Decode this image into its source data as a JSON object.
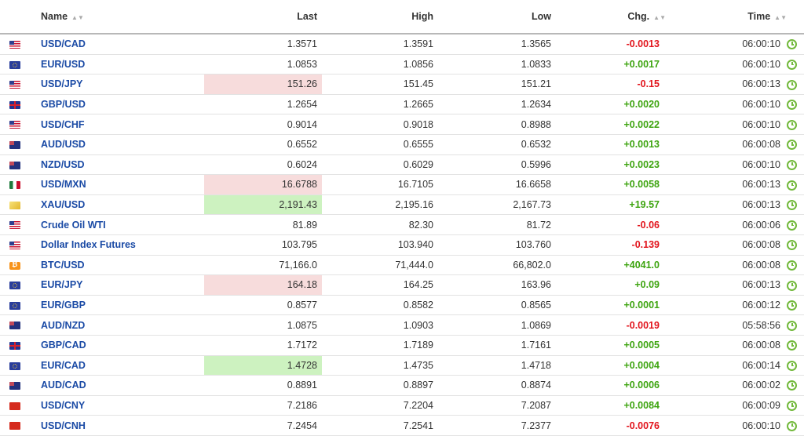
{
  "columns": {
    "name": "Name",
    "last": "Last",
    "high": "High",
    "low": "Low",
    "chg": "Chg.",
    "time": "Time"
  },
  "colors": {
    "positive": "#3da40f",
    "negative": "#e2141c",
    "link": "#1a4aa5",
    "highlight_down": "#f7dcdc",
    "highlight_up": "#cdf2c0"
  },
  "rows": [
    {
      "flag": "us-flag-icon",
      "name": "USD/CAD",
      "last": "1.3571",
      "high": "1.3591",
      "low": "1.3565",
      "chg": "-0.0013",
      "dir": "neg",
      "time": "06:00:10",
      "hl": ""
    },
    {
      "flag": "eu-flag-icon",
      "name": "EUR/USD",
      "last": "1.0853",
      "high": "1.0856",
      "low": "1.0833",
      "chg": "+0.0017",
      "dir": "pos",
      "time": "06:00:10",
      "hl": ""
    },
    {
      "flag": "us-flag-icon",
      "name": "USD/JPY",
      "last": "151.26",
      "high": "151.45",
      "low": "151.21",
      "chg": "-0.15",
      "dir": "neg",
      "time": "06:00:13",
      "hl": "down"
    },
    {
      "flag": "gb-flag-icon",
      "name": "GBP/USD",
      "last": "1.2654",
      "high": "1.2665",
      "low": "1.2634",
      "chg": "+0.0020",
      "dir": "pos",
      "time": "06:00:10",
      "hl": ""
    },
    {
      "flag": "us-flag-icon",
      "name": "USD/CHF",
      "last": "0.9014",
      "high": "0.9018",
      "low": "0.8988",
      "chg": "+0.0022",
      "dir": "pos",
      "time": "06:00:10",
      "hl": ""
    },
    {
      "flag": "au-flag-icon",
      "name": "AUD/USD",
      "last": "0.6552",
      "high": "0.6555",
      "low": "0.6532",
      "chg": "+0.0013",
      "dir": "pos",
      "time": "06:00:08",
      "hl": ""
    },
    {
      "flag": "nz-flag-icon",
      "name": "NZD/USD",
      "last": "0.6024",
      "high": "0.6029",
      "low": "0.5996",
      "chg": "+0.0023",
      "dir": "pos",
      "time": "06:00:10",
      "hl": ""
    },
    {
      "flag": "mx-flag-icon",
      "name": "USD/MXN",
      "last": "16.6788",
      "high": "16.7105",
      "low": "16.6658",
      "chg": "+0.0058",
      "dir": "pos",
      "time": "06:00:13",
      "hl": "down"
    },
    {
      "flag": "gold-icon",
      "name": "XAU/USD",
      "last": "2,191.43",
      "high": "2,195.16",
      "low": "2,167.73",
      "chg": "+19.57",
      "dir": "pos",
      "time": "06:00:13",
      "hl": "up"
    },
    {
      "flag": "us-flag-icon",
      "name": "Crude Oil WTI",
      "last": "81.89",
      "high": "82.30",
      "low": "81.72",
      "chg": "-0.06",
      "dir": "neg",
      "time": "06:00:06",
      "hl": ""
    },
    {
      "flag": "us-flag-icon",
      "name": "Dollar Index Futures",
      "last": "103.795",
      "high": "103.940",
      "low": "103.760",
      "chg": "-0.139",
      "dir": "neg",
      "time": "06:00:08",
      "hl": ""
    },
    {
      "flag": "bitcoin-icon",
      "name": "BTC/USD",
      "last": "71,166.0",
      "high": "71,444.0",
      "low": "66,802.0",
      "chg": "+4041.0",
      "dir": "pos",
      "time": "06:00:08",
      "hl": ""
    },
    {
      "flag": "eu-flag-icon",
      "name": "EUR/JPY",
      "last": "164.18",
      "high": "164.25",
      "low": "163.96",
      "chg": "+0.09",
      "dir": "pos",
      "time": "06:00:13",
      "hl": "down"
    },
    {
      "flag": "eu-flag-icon",
      "name": "EUR/GBP",
      "last": "0.8577",
      "high": "0.8582",
      "low": "0.8565",
      "chg": "+0.0001",
      "dir": "pos",
      "time": "06:00:12",
      "hl": ""
    },
    {
      "flag": "au-flag-icon",
      "name": "AUD/NZD",
      "last": "1.0875",
      "high": "1.0903",
      "low": "1.0869",
      "chg": "-0.0019",
      "dir": "neg",
      "time": "05:58:56",
      "hl": ""
    },
    {
      "flag": "gb-flag-icon",
      "name": "GBP/CAD",
      "last": "1.7172",
      "high": "1.7189",
      "low": "1.7161",
      "chg": "+0.0005",
      "dir": "pos",
      "time": "06:00:08",
      "hl": ""
    },
    {
      "flag": "eu-flag-icon",
      "name": "EUR/CAD",
      "last": "1.4728",
      "high": "1.4735",
      "low": "1.4718",
      "chg": "+0.0004",
      "dir": "pos",
      "time": "06:00:14",
      "hl": "up"
    },
    {
      "flag": "au-flag-icon",
      "name": "AUD/CAD",
      "last": "0.8891",
      "high": "0.8897",
      "low": "0.8874",
      "chg": "+0.0006",
      "dir": "pos",
      "time": "06:00:02",
      "hl": ""
    },
    {
      "flag": "cn-flag-icon",
      "name": "USD/CNY",
      "last": "7.2186",
      "high": "7.2204",
      "low": "7.2087",
      "chg": "+0.0084",
      "dir": "pos",
      "time": "06:00:09",
      "hl": ""
    },
    {
      "flag": "cn-flag-icon",
      "name": "USD/CNH",
      "last": "7.2454",
      "high": "7.2541",
      "low": "7.2377",
      "chg": "-0.0076",
      "dir": "neg",
      "time": "06:00:10",
      "hl": ""
    }
  ]
}
